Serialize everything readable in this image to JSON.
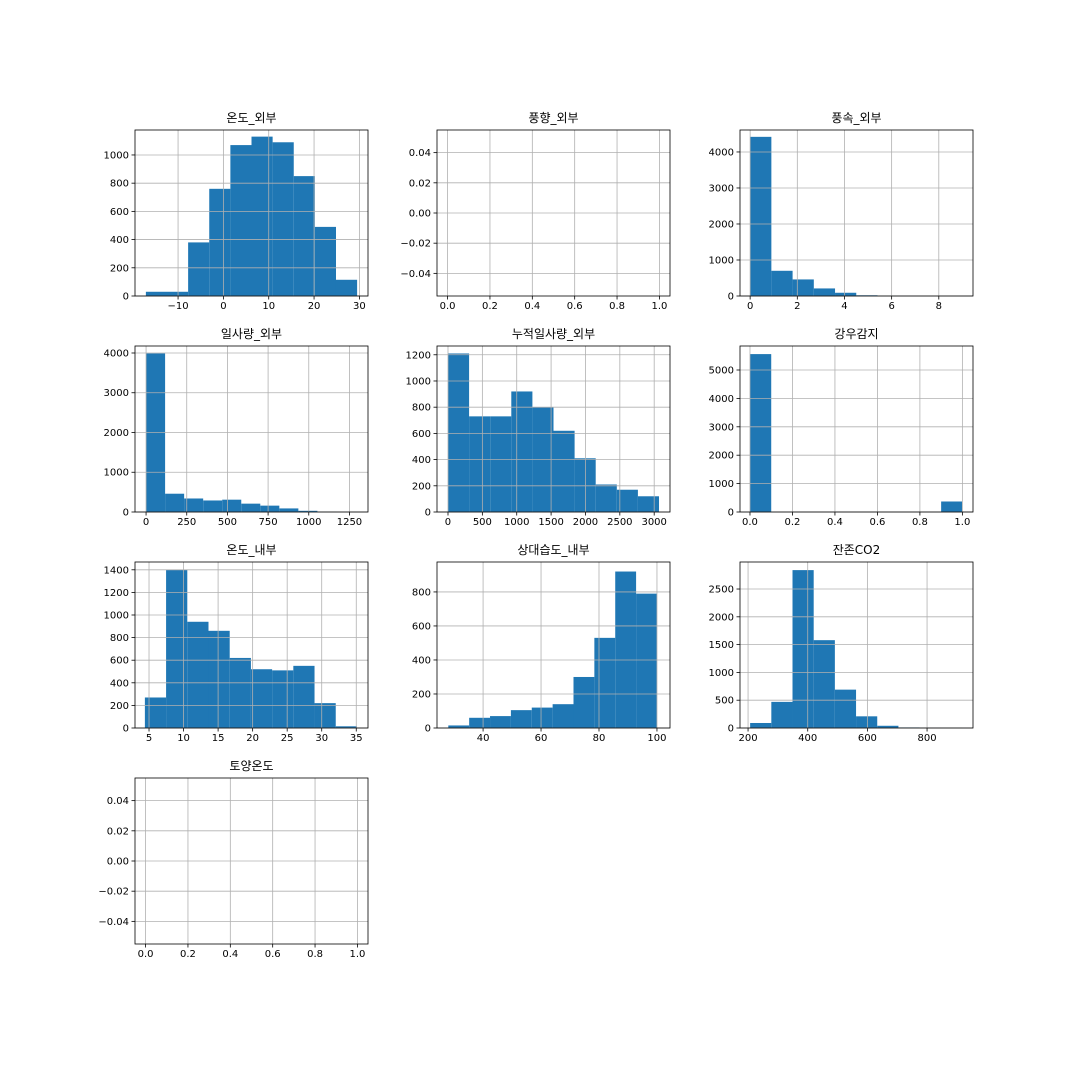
{
  "chart_data": [
    {
      "type": "histogram",
      "title": "온도_외부",
      "color": "#1f77b4",
      "grid": true,
      "bins": [
        -17.1,
        -12.44,
        -7.78,
        -3.12,
        1.54,
        6.2,
        10.86,
        15.52,
        20.18,
        24.84,
        29.5
      ],
      "counts": [
        30,
        30,
        380,
        760,
        1070,
        1130,
        1090,
        850,
        490,
        115
      ],
      "xlim": [
        -19.5,
        31.9
      ],
      "ylim": [
        0,
        1177
      ],
      "xticks": [
        {
          "value": -10,
          "label": "−10"
        },
        0,
        10,
        20,
        30
      ],
      "yticks": [
        0,
        200,
        400,
        600,
        800,
        1000
      ]
    },
    {
      "type": "histogram",
      "title": "풍향_외부",
      "color": "#1f77b4",
      "grid": true,
      "xlim": [
        -0.05,
        1.05
      ],
      "ylim": [
        -0.055,
        0.055
      ],
      "xticks": [
        {
          "value": 0,
          "label": "0.0"
        },
        0.2,
        0.4,
        0.6,
        0.8,
        {
          "value": 1,
          "label": "1.0"
        }
      ],
      "yticks": [
        {
          "value": -0.04,
          "label": "−0.04"
        },
        {
          "value": -0.02,
          "label": "−0.02"
        },
        {
          "value": 0,
          "label": "0.00"
        },
        0.02,
        0.04
      ]
    },
    {
      "type": "histogram",
      "title": "풍속_외부",
      "color": "#1f77b4",
      "grid": true,
      "bins": [
        0,
        0.9,
        1.8,
        2.7,
        3.6,
        4.5,
        5.4,
        6.3,
        7.2,
        8.1,
        9.0
      ],
      "counts": [
        4420,
        700,
        460,
        210,
        90,
        20,
        5,
        2,
        1,
        1
      ],
      "xlim": [
        -0.43,
        9.45
      ],
      "ylim": [
        0,
        4610
      ],
      "xticks": [
        0,
        2,
        4,
        6,
        8
      ],
      "yticks": [
        0,
        1000,
        2000,
        3000,
        4000
      ]
    },
    {
      "type": "histogram",
      "title": "일사량_외부",
      "color": "#1f77b4",
      "grid": true,
      "bins": [
        0,
        117,
        234,
        351,
        468,
        585,
        702,
        819,
        936,
        1053,
        1170
      ],
      "counts": [
        3990,
        460,
        340,
        290,
        310,
        210,
        160,
        90,
        30,
        5
      ],
      "xlim": [
        -68,
        1364
      ],
      "ylim": [
        0,
        4176
      ],
      "xticks": [
        0,
        250,
        500,
        750,
        1000,
        1250
      ],
      "yticks": [
        0,
        1000,
        2000,
        3000,
        4000
      ]
    },
    {
      "type": "histogram",
      "title": "누적일사량_외부",
      "color": "#1f77b4",
      "grid": true,
      "bins": [
        0,
        307,
        614,
        921,
        1228,
        1535,
        1842,
        2149,
        2456,
        2763,
        3070
      ],
      "counts": [
        1210,
        730,
        730,
        920,
        800,
        620,
        410,
        210,
        170,
        120
      ],
      "xlim": [
        -160,
        3230
      ],
      "ylim": [
        0,
        1267
      ],
      "xticks": [
        0,
        500,
        1000,
        1500,
        2000,
        2500,
        3000
      ],
      "yticks": [
        0,
        200,
        400,
        600,
        800,
        1000,
        1200
      ]
    },
    {
      "type": "histogram",
      "title": "강우감지",
      "color": "#1f77b4",
      "grid": true,
      "bins": [
        0,
        0.1,
        0.2,
        0.3,
        0.4,
        0.5,
        0.6,
        0.7,
        0.8,
        0.9,
        1.0
      ],
      "counts": [
        5560,
        0,
        0,
        0,
        0,
        0,
        0,
        0,
        0,
        370
      ],
      "xlim": [
        -0.047,
        1.05
      ],
      "ylim": [
        0,
        5845
      ],
      "xticks": [
        {
          "value": 0,
          "label": "0.0"
        },
        0.2,
        0.4,
        0.6,
        0.8,
        {
          "value": 1,
          "label": "1.0"
        }
      ],
      "yticks": [
        0,
        1000,
        2000,
        3000,
        4000,
        5000
      ]
    },
    {
      "type": "histogram",
      "title": "온도_내부",
      "color": "#1f77b4",
      "grid": true,
      "bins": [
        4.4,
        7.47,
        10.54,
        13.61,
        16.68,
        19.75,
        22.82,
        25.89,
        28.96,
        32.03,
        35.1
      ],
      "counts": [
        270,
        1400,
        940,
        860,
        620,
        520,
        510,
        550,
        220,
        15
      ],
      "xlim": [
        2.97,
        36.7
      ],
      "ylim": [
        0,
        1469
      ],
      "xticks": [
        5,
        10,
        15,
        20,
        25,
        30,
        35
      ],
      "yticks": [
        0,
        200,
        400,
        600,
        800,
        1000,
        1200,
        1400
      ]
    },
    {
      "type": "histogram",
      "title": "상대습도_내부",
      "color": "#1f77b4",
      "grid": true,
      "bins": [
        28,
        35.2,
        42.4,
        49.6,
        56.8,
        64,
        71.2,
        78.4,
        85.6,
        92.8,
        100
      ],
      "counts": [
        15,
        60,
        70,
        105,
        120,
        140,
        300,
        530,
        920,
        790
      ],
      "xlim": [
        24.1,
        104.5
      ],
      "ylim": [
        0,
        976
      ],
      "xticks": [
        40,
        60,
        80,
        100
      ],
      "yticks": [
        0,
        200,
        400,
        600,
        800
      ]
    },
    {
      "type": "histogram",
      "title": "잔존CO2",
      "color": "#1f77b4",
      "grid": true,
      "bins": [
        207,
        278,
        349,
        420,
        491,
        562,
        633,
        704,
        775,
        846,
        917
      ],
      "counts": [
        90,
        470,
        2840,
        1580,
        690,
        210,
        40,
        10,
        5,
        3
      ],
      "xlim": [
        173,
        954
      ],
      "ylim": [
        0,
        2986
      ],
      "xticks": [
        200,
        400,
        600,
        800
      ],
      "yticks": [
        0,
        500,
        1000,
        1500,
        2000,
        2500
      ]
    },
    {
      "type": "histogram",
      "title": "토양온도",
      "color": "#1f77b4",
      "grid": true,
      "xlim": [
        -0.05,
        1.05
      ],
      "ylim": [
        -0.055,
        0.055
      ],
      "xticks": [
        {
          "value": 0,
          "label": "0.0"
        },
        0.2,
        0.4,
        0.6,
        0.8,
        {
          "value": 1,
          "label": "1.0"
        }
      ],
      "yticks": [
        {
          "value": -0.04,
          "label": "−0.04"
        },
        {
          "value": -0.02,
          "label": "−0.02"
        },
        {
          "value": 0,
          "label": "0.00"
        },
        0.02,
        0.04
      ]
    }
  ]
}
